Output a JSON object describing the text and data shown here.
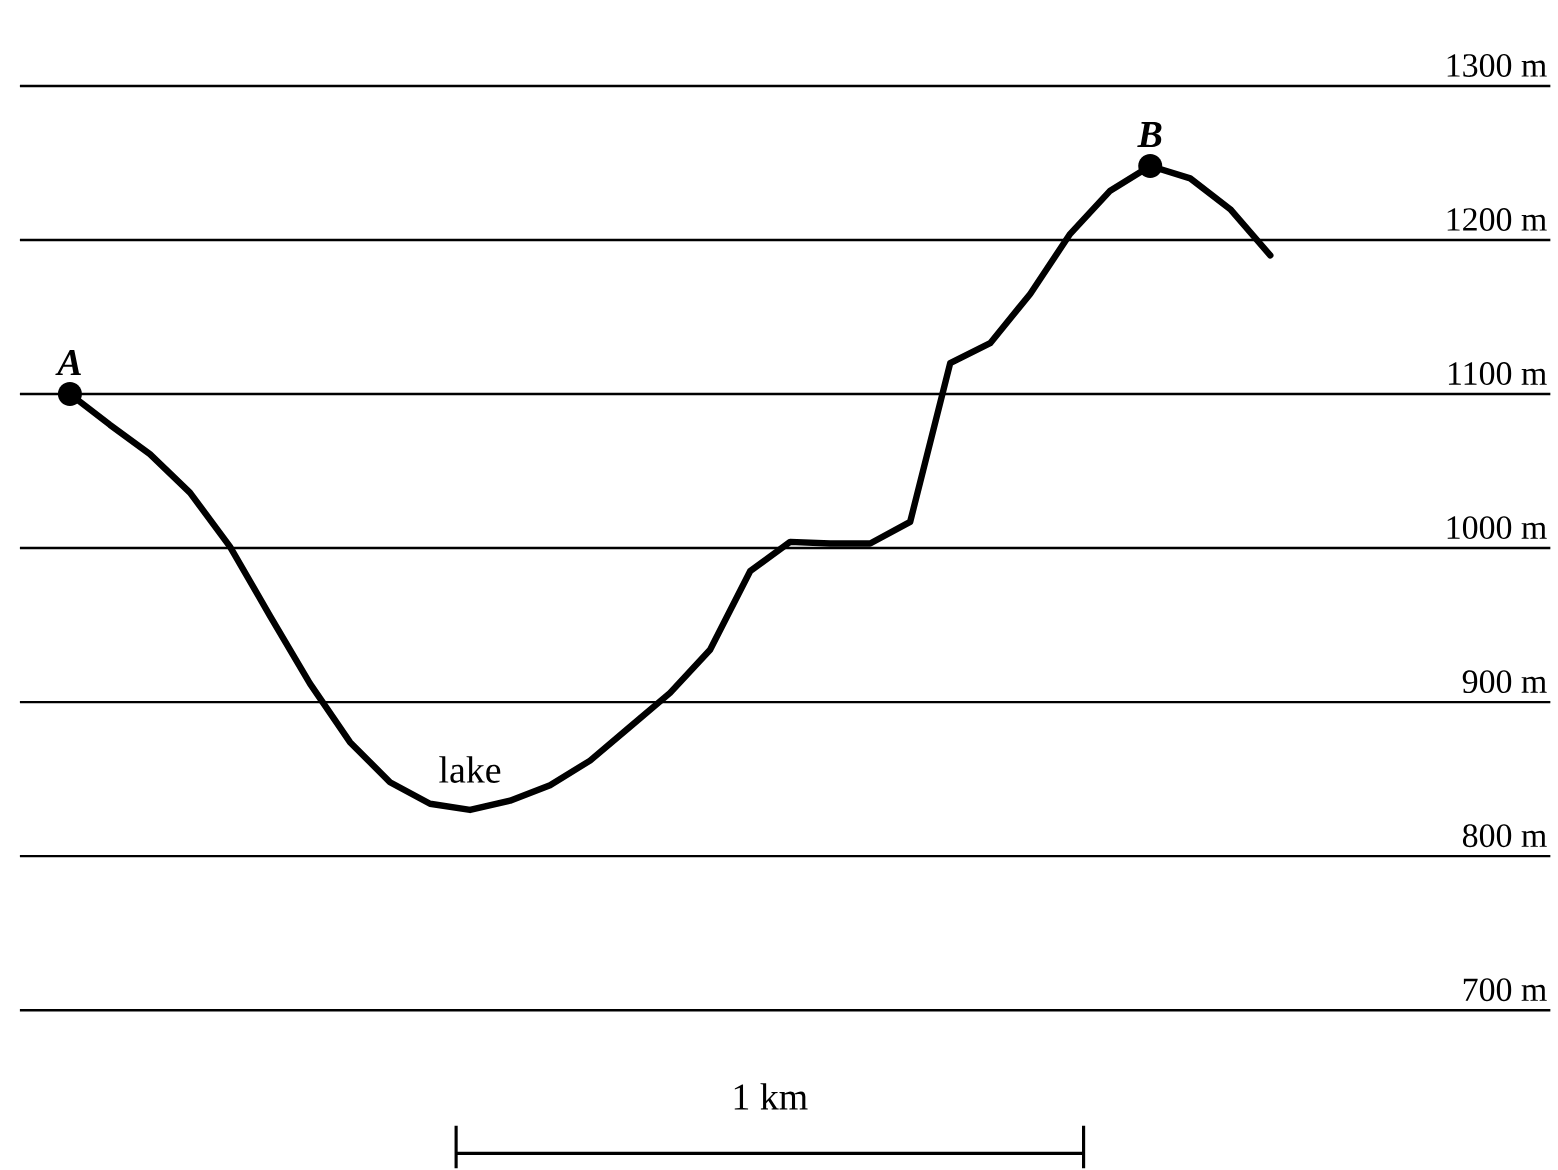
{
  "chart_data": {
    "type": "line",
    "categories": [
      null,
      null,
      null,
      null,
      null,
      null,
      null,
      null,
      null,
      null,
      null,
      null,
      null,
      null,
      null,
      null,
      null,
      null,
      null,
      null,
      null,
      null,
      null,
      null,
      null,
      null,
      null,
      null,
      null,
      null,
      null
    ],
    "series": [
      {
        "color": "#000000",
        "values": [
          1100,
          1080,
          1061,
          1036,
          1001,
          956,
          912,
          874,
          848,
          834,
          830,
          836,
          846,
          862,
          884,
          906,
          934,
          985,
          1004,
          1003,
          1003,
          1017,
          1120,
          1133,
          1165,
          1204,
          1232,
          1248,
          1240,
          1220,
          1190
        ]
      }
    ],
    "ylim": [
      700,
      1300
    ],
    "yticks": [
      {
        "value": 700,
        "label": "700 m"
      },
      {
        "value": 800,
        "label": "800 m"
      },
      {
        "value": 900,
        "label": "900 m"
      },
      {
        "value": 1000,
        "label": "1000 m"
      },
      {
        "value": 1100,
        "label": "1100 m"
      },
      {
        "value": 1200,
        "label": "1200 m"
      },
      {
        "value": 1300,
        "label": "1300 m"
      }
    ],
    "grid": "y",
    "annotations": [
      {
        "text": "A",
        "y": 1100
      },
      {
        "text": "B",
        "y": 1248
      },
      {
        "text": "lake",
        "y": 830
      },
      "1 km"
    ]
  }
}
